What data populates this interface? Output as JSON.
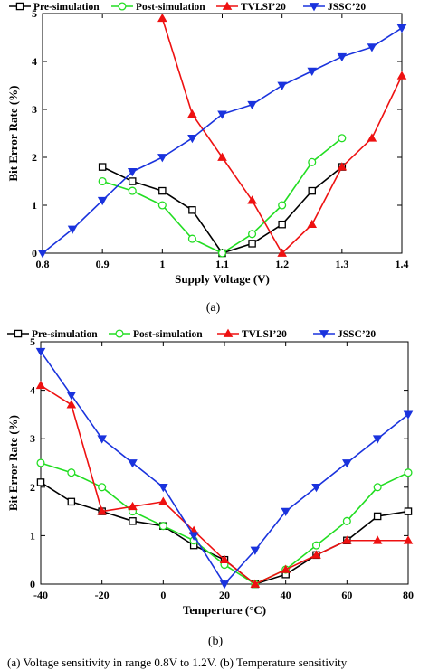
{
  "chart_data": [
    {
      "type": "line",
      "panel": "(a)",
      "xlabel": "Supply Voltage (V)",
      "ylabel": "Bit Error Rate (%)",
      "xlim": [
        0.8,
        1.4
      ],
      "ylim": [
        0,
        5
      ],
      "xticks": [
        0.8,
        0.9,
        1,
        1.1,
        1.2,
        1.3,
        1.4
      ],
      "xtick_labels": [
        "0.8",
        "0.9",
        "1",
        "1.1",
        "1.2",
        "1.3",
        "1.4"
      ],
      "yticks": [
        0,
        1,
        2,
        3,
        4,
        5
      ],
      "ytick_labels": [
        "0",
        "1",
        "2",
        "3",
        "4",
        "5"
      ],
      "legend_placement": "top",
      "series": [
        {
          "name": "Pre-simulation",
          "color": "#000000",
          "marker": "square",
          "x": [
            0.9,
            0.95,
            1.0,
            1.05,
            1.1,
            1.15,
            1.2,
            1.25,
            1.3
          ],
          "y": [
            1.8,
            1.5,
            1.3,
            0.9,
            0.0,
            0.2,
            0.6,
            1.3,
            1.8
          ]
        },
        {
          "name": "Post-simulation",
          "color": "#22dd22",
          "marker": "circle",
          "x": [
            0.9,
            0.95,
            1.0,
            1.05,
            1.1,
            1.15,
            1.2,
            1.25,
            1.3
          ],
          "y": [
            1.5,
            1.3,
            1.0,
            0.3,
            0.0,
            0.4,
            1.0,
            1.9,
            2.4
          ]
        },
        {
          "name": "TVLSI’20",
          "color": "#ee1111",
          "marker": "triangle-up",
          "x": [
            1.0,
            1.05,
            1.1,
            1.15,
            1.2,
            1.25,
            1.3,
            1.35,
            1.4
          ],
          "y": [
            4.9,
            2.9,
            2.0,
            1.1,
            0.0,
            0.6,
            1.8,
            2.4,
            3.7
          ]
        },
        {
          "name": "JSSC’20",
          "color": "#1a33dd",
          "marker": "triangle-down",
          "x": [
            0.8,
            0.85,
            0.9,
            0.95,
            1.0,
            1.05,
            1.1,
            1.15,
            1.2,
            1.25,
            1.3,
            1.35,
            1.4
          ],
          "y": [
            0.0,
            0.5,
            1.1,
            1.7,
            2.0,
            2.4,
            2.9,
            3.1,
            3.5,
            3.8,
            4.1,
            4.3,
            4.7
          ]
        }
      ]
    },
    {
      "type": "line",
      "panel": "(b)",
      "xlabel": "Temperture (°C)",
      "ylabel": "Bit Error Rate (%)",
      "xlim": [
        -40,
        80
      ],
      "ylim": [
        0,
        5
      ],
      "xticks": [
        -40,
        -20,
        0,
        20,
        40,
        60,
        80
      ],
      "xtick_labels": [
        "-40",
        "-20",
        "0",
        "20",
        "40",
        "60",
        "80"
      ],
      "yticks": [
        0,
        1,
        2,
        3,
        4,
        5
      ],
      "ytick_labels": [
        "0",
        "1",
        "2",
        "3",
        "4",
        "5"
      ],
      "legend_placement": "top",
      "series": [
        {
          "name": "Pre-simulation",
          "color": "#000000",
          "marker": "square",
          "x": [
            -40,
            -30,
            -20,
            -10,
            0,
            10,
            20,
            30,
            40,
            50,
            60,
            70,
            80
          ],
          "y": [
            2.1,
            1.7,
            1.5,
            1.3,
            1.2,
            0.8,
            0.5,
            0.0,
            0.2,
            0.6,
            0.9,
            1.4,
            1.5
          ]
        },
        {
          "name": "Post-simulation",
          "color": "#22dd22",
          "marker": "circle",
          "x": [
            -40,
            -30,
            -20,
            -10,
            0,
            10,
            20,
            30,
            40,
            50,
            60,
            70,
            80
          ],
          "y": [
            2.5,
            2.3,
            2.0,
            1.5,
            1.2,
            0.9,
            0.4,
            0.0,
            0.3,
            0.8,
            1.3,
            2.0,
            2.3
          ]
        },
        {
          "name": "TVLSI’20",
          "color": "#ee1111",
          "marker": "triangle-up",
          "x": [
            -40,
            -30,
            -20,
            -10,
            0,
            10,
            20,
            30,
            40,
            50,
            60,
            70,
            80
          ],
          "y": [
            4.1,
            3.7,
            1.5,
            1.6,
            1.7,
            1.1,
            0.5,
            0.0,
            0.3,
            0.6,
            0.9,
            0.9,
            0.9
          ]
        },
        {
          "name": "JSSC’20",
          "color": "#1a33dd",
          "marker": "triangle-down",
          "x": [
            -40,
            -30,
            -20,
            -10,
            0,
            10,
            20,
            30,
            40,
            50,
            60,
            70,
            80
          ],
          "y": [
            4.8,
            3.9,
            3.0,
            2.5,
            2.0,
            1.0,
            0.0,
            0.7,
            1.5,
            2.0,
            2.5,
            3.0,
            3.5
          ]
        }
      ]
    }
  ],
  "caption": "(a) Voltage sensitivity in range 0.8V to 1.2V. (b) Temperature sensitivity"
}
